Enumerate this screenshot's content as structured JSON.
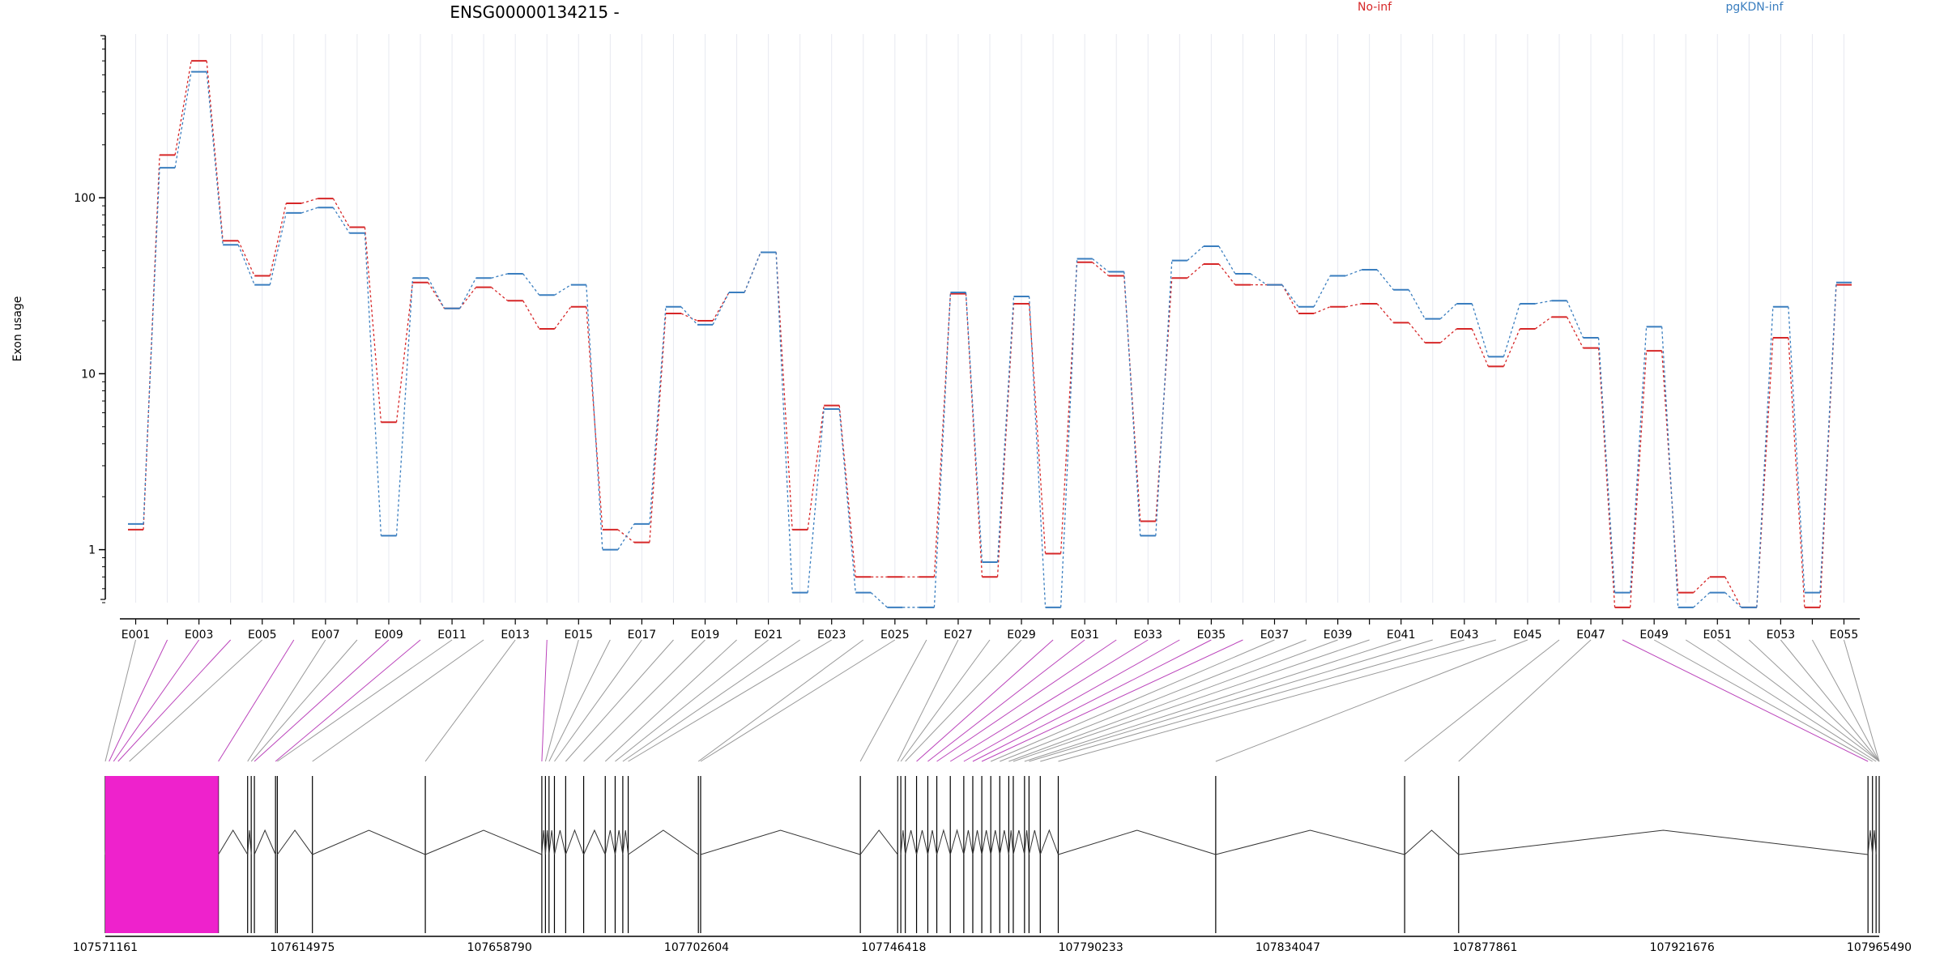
{
  "chart_data": {
    "type": "line",
    "title": "ENSG00000134215 -",
    "ylabel": "Exon usage",
    "xlabel": "",
    "yscale": "log",
    "ylim": [
      0.5,
      800
    ],
    "yticks": [
      1,
      10,
      100
    ],
    "ytick_labels": [
      "1",
      "10",
      "100"
    ],
    "grid": "vertical-light",
    "legend_position": "top-right",
    "categories": [
      "E001",
      "E002",
      "E003",
      "E004",
      "E005",
      "E006",
      "E007",
      "E008",
      "E009",
      "E010",
      "E011",
      "E012",
      "E013",
      "E014",
      "E015",
      "E016",
      "E017",
      "E018",
      "E019",
      "E020",
      "E021",
      "E022",
      "E023",
      "E024",
      "E025",
      "E026",
      "E027",
      "E028",
      "E029",
      "E030",
      "E031",
      "E032",
      "E033",
      "E034",
      "E035",
      "E036",
      "E037",
      "E038",
      "E039",
      "E040",
      "E041",
      "E042",
      "E043",
      "E044",
      "E045",
      "E046",
      "E047",
      "E048",
      "E049",
      "E050",
      "E051",
      "E052",
      "E053",
      "E054",
      "E055"
    ],
    "category_labels_shown": [
      "E001",
      "E003",
      "E005",
      "E007",
      "E009",
      "E011",
      "E013",
      "E015",
      "E017",
      "E019",
      "E021",
      "E023",
      "E025",
      "E027",
      "E029",
      "E031",
      "E033",
      "E035",
      "E037",
      "E039",
      "E041",
      "E043",
      "E045",
      "E047",
      "E049",
      "E051",
      "E053",
      "E055"
    ],
    "series": [
      {
        "name": "No-inf",
        "color": "#d62728",
        "values": [
          1.3,
          175,
          600,
          57,
          36,
          93,
          99,
          68,
          5.3,
          33,
          23.5,
          31,
          26,
          18,
          24,
          1.3,
          1.1,
          22,
          20,
          29,
          49,
          1.3,
          6.6,
          0.7,
          0.7,
          0.7,
          28.5,
          0.7,
          25,
          0.95,
          43,
          36,
          1.45,
          35,
          42,
          32,
          32,
          22,
          24,
          25,
          19.5,
          15,
          18,
          11,
          18,
          21,
          14,
          0.47,
          13.5,
          0.57,
          0.7,
          0.47,
          16,
          0.47,
          32
        ]
      },
      {
        "name": "pgKDN-inf",
        "color": "#3a7ebf",
        "values": [
          1.4,
          148,
          520,
          54,
          32,
          82,
          88,
          63,
          1.2,
          35,
          23.5,
          35,
          37,
          28,
          32,
          1.0,
          1.4,
          24,
          19,
          29,
          49,
          0.57,
          6.3,
          0.57,
          0.47,
          0.47,
          29,
          0.85,
          27.5,
          0.47,
          45,
          38,
          1.2,
          44,
          53,
          37,
          32,
          24,
          36,
          39,
          30,
          20.5,
          25,
          12.5,
          25,
          26,
          16,
          0.57,
          18.5,
          0.47,
          0.57,
          0.47,
          24,
          0.57,
          33
        ]
      }
    ],
    "gene_track": {
      "start": 107571161,
      "end": 107965490,
      "axis_ticks": [
        107571161,
        107614975,
        107658790,
        107702604,
        107746418,
        107790233,
        107834047,
        107877861,
        107921676,
        107965490
      ],
      "axis_tick_labels": [
        "107571161",
        "107614975",
        "107658790",
        "107702604",
        "107746418",
        "107790233",
        "107834047",
        "107877861",
        "107921676",
        "107965490"
      ],
      "exon_positions": [
        107571161,
        107572000,
        107573000,
        107574000,
        107576500,
        107596300,
        107602800,
        107603600,
        107604300,
        107609000,
        107609400,
        107617200,
        107642300,
        107668200,
        107669000,
        107669800,
        107671000,
        107673500,
        107677500,
        107682300,
        107684500,
        107686200,
        107687400,
        107703000,
        107703500,
        107739000,
        107747300,
        107748000,
        107749000,
        107751500,
        107754000,
        107756000,
        107759000,
        107762000,
        107764000,
        107766000,
        107768000,
        107770000,
        107772000,
        107773000,
        107775500,
        107776500,
        107779000,
        107783000,
        107818000,
        107860000,
        107872000,
        107963000,
        107964000,
        107964800,
        107965490
      ],
      "highlighted_exons": [
        1,
        2,
        3,
        5,
        8,
        9,
        13,
        29,
        30,
        31,
        32,
        33,
        34,
        35,
        47
      ]
    }
  }
}
